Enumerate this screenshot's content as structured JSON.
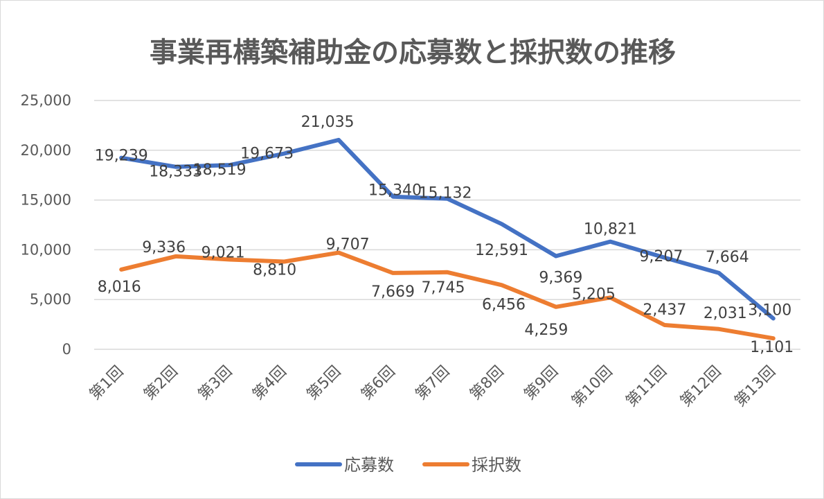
{
  "chart_data": {
    "type": "line",
    "title": "事業再構築補助金の応募数と採択数の推移",
    "categories": [
      "第1回",
      "第2回",
      "第3回",
      "第4回",
      "第5回",
      "第6回",
      "第7回",
      "第8回",
      "第9回",
      "第10回",
      "第11回",
      "第12回",
      "第13回"
    ],
    "series": [
      {
        "name": "応募数",
        "color": "#4472c4",
        "values": [
          19239,
          18333,
          18519,
          19673,
          21035,
          15340,
          15132,
          12591,
          9369,
          10821,
          9207,
          7664,
          3100
        ],
        "labels": [
          "19,239",
          "18,333",
          "18,519",
          "19,673",
          "21,035",
          "15,340",
          "15,132",
          "12,591",
          "9,369",
          "10,821",
          "9,207",
          "7,664",
          "3,100"
        ]
      },
      {
        "name": "採択数",
        "color": "#ed7d31",
        "values": [
          8016,
          9336,
          9021,
          8810,
          9707,
          7669,
          7745,
          6456,
          4259,
          5205,
          2437,
          2031,
          1101
        ],
        "labels": [
          "8,016",
          "9,336",
          "9,021",
          "8,810",
          "9,707",
          "7,669",
          "7,745",
          "6,456",
          "4,259",
          "5,205",
          "2,437",
          "2,031",
          "1,101"
        ]
      }
    ],
    "ylim": [
      0,
      25000
    ],
    "yticks": [
      0,
      5000,
      10000,
      15000,
      20000,
      25000
    ],
    "ytick_labels": [
      "0",
      "5,000",
      "10,000",
      "15,000",
      "20,000",
      "25,000"
    ],
    "grid": true,
    "legend_position": "bottom"
  }
}
